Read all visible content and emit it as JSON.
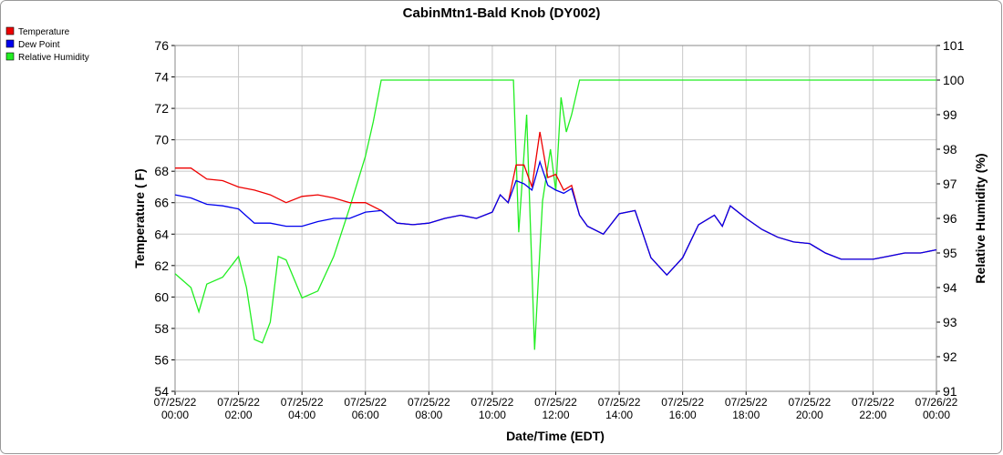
{
  "chart_data": {
    "type": "line",
    "title": "CabinMtn1-Bald Knob (DY002)",
    "x_label": "Date/Time (EDT)",
    "y_label": "Temperature ( F)",
    "y2_label": "Relative Humidity (%)",
    "xlim": [
      "07/25/22 00:00",
      "07/26/22 00:00"
    ],
    "xticks": [
      "07/25/22 00:00",
      "07/25/22 02:00",
      "07/25/22 04:00",
      "07/25/22 06:00",
      "07/25/22 08:00",
      "07/25/22 10:00",
      "07/25/22 12:00",
      "07/25/22 14:00",
      "07/25/22 16:00",
      "07/25/22 18:00",
      "07/25/22 20:00",
      "07/25/22 22:00",
      "07/26/22 00:00"
    ],
    "ylim": [
      54,
      76
    ],
    "yticks": [
      54,
      56,
      58,
      60,
      62,
      64,
      66,
      68,
      70,
      72,
      74,
      76
    ],
    "y2lim": [
      91,
      101
    ],
    "y2ticks": [
      91,
      92,
      93,
      94,
      95,
      96,
      97,
      98,
      99,
      100,
      101
    ],
    "grid": true,
    "legend": "top-left",
    "series": [
      {
        "name": "Temperature",
        "color": "#ee0000",
        "x": [
          "07/25/22 00:00",
          "07/25/22 00:30",
          "07/25/22 01:00",
          "07/25/22 01:30",
          "07/25/22 02:00",
          "07/25/22 02:30",
          "07/25/22 03:00",
          "07/25/22 03:30",
          "07/25/22 04:00",
          "07/25/22 04:30",
          "07/25/22 05:00",
          "07/25/22 05:30",
          "07/25/22 06:00",
          "07/25/22 06:30",
          "07/25/22 07:00",
          "07/25/22 07:30",
          "07/25/22 08:00",
          "07/25/22 08:30",
          "07/25/22 09:00",
          "07/25/22 09:30",
          "07/25/22 10:00",
          "07/25/22 10:15",
          "07/25/22 10:30",
          "07/25/22 10:45",
          "07/25/22 11:00",
          "07/25/22 11:15",
          "07/25/22 11:30",
          "07/25/22 11:45",
          "07/25/22 12:00",
          "07/25/22 12:15",
          "07/25/22 12:30",
          "07/25/22 12:45",
          "07/25/22 13:00",
          "07/25/22 13:30",
          "07/25/22 14:00",
          "07/25/22 14:30",
          "07/25/22 15:00",
          "07/25/22 15:30",
          "07/25/22 16:00",
          "07/25/22 16:30",
          "07/25/22 17:00",
          "07/25/22 17:15",
          "07/25/22 17:30",
          "07/25/22 18:00",
          "07/25/22 18:30",
          "07/25/22 19:00",
          "07/25/22 19:30",
          "07/25/22 20:00",
          "07/25/22 20:30",
          "07/25/22 21:00",
          "07/25/22 21:30",
          "07/25/22 22:00",
          "07/25/22 22:30",
          "07/25/22 23:00",
          "07/25/22 23:30",
          "07/26/22 00:00"
        ],
        "values": [
          68.2,
          68.2,
          67.5,
          67.4,
          67.0,
          66.8,
          66.5,
          66.0,
          66.4,
          66.5,
          66.3,
          66.0,
          66.0,
          65.5,
          64.7,
          64.6,
          64.7,
          65.0,
          65.2,
          65.0,
          65.4,
          66.5,
          66.0,
          68.4,
          68.4,
          67.0,
          70.5,
          67.6,
          67.8,
          66.8,
          67.1,
          65.2,
          64.5,
          64.0,
          65.3,
          65.5,
          62.5,
          61.4,
          62.5,
          64.6,
          65.2,
          64.5,
          65.8,
          65.0,
          64.3,
          63.8,
          63.5,
          63.4,
          62.8,
          62.4,
          62.4,
          62.4,
          62.6,
          62.8,
          62.8,
          63.0
        ]
      },
      {
        "name": "Dew Point",
        "color": "#0000ee",
        "x": [
          "07/25/22 00:00",
          "07/25/22 00:30",
          "07/25/22 01:00",
          "07/25/22 01:30",
          "07/25/22 02:00",
          "07/25/22 02:30",
          "07/25/22 03:00",
          "07/25/22 03:30",
          "07/25/22 04:00",
          "07/25/22 04:30",
          "07/25/22 05:00",
          "07/25/22 05:30",
          "07/25/22 06:00",
          "07/25/22 06:30",
          "07/25/22 07:00",
          "07/25/22 07:30",
          "07/25/22 08:00",
          "07/25/22 08:30",
          "07/25/22 09:00",
          "07/25/22 09:30",
          "07/25/22 10:00",
          "07/25/22 10:15",
          "07/25/22 10:30",
          "07/25/22 10:45",
          "07/25/22 11:00",
          "07/25/22 11:15",
          "07/25/22 11:30",
          "07/25/22 11:45",
          "07/25/22 12:00",
          "07/25/22 12:15",
          "07/25/22 12:30",
          "07/25/22 12:45",
          "07/25/22 13:00",
          "07/25/22 13:30",
          "07/25/22 14:00",
          "07/25/22 14:30",
          "07/25/22 15:00",
          "07/25/22 15:30",
          "07/25/22 16:00",
          "07/25/22 16:30",
          "07/25/22 17:00",
          "07/25/22 17:15",
          "07/25/22 17:30",
          "07/25/22 18:00",
          "07/25/22 18:30",
          "07/25/22 19:00",
          "07/25/22 19:30",
          "07/25/22 20:00",
          "07/25/22 20:30",
          "07/25/22 21:00",
          "07/25/22 21:30",
          "07/25/22 22:00",
          "07/25/22 22:30",
          "07/25/22 23:00",
          "07/25/22 23:30",
          "07/26/22 00:00"
        ],
        "values": [
          66.5,
          66.3,
          65.9,
          65.8,
          65.6,
          64.7,
          64.7,
          64.5,
          64.5,
          64.8,
          65.0,
          65.0,
          65.4,
          65.5,
          64.7,
          64.6,
          64.7,
          65.0,
          65.2,
          65.0,
          65.4,
          66.5,
          66.0,
          67.4,
          67.2,
          66.8,
          68.6,
          67.1,
          66.8,
          66.6,
          66.9,
          65.2,
          64.5,
          64.0,
          65.3,
          65.5,
          62.5,
          61.4,
          62.5,
          64.6,
          65.2,
          64.5,
          65.8,
          65.0,
          64.3,
          63.8,
          63.5,
          63.4,
          62.8,
          62.4,
          62.4,
          62.4,
          62.6,
          62.8,
          62.8,
          63.0
        ]
      },
      {
        "name": "Relative Humidity",
        "color": "#22ee22",
        "axis": "y2",
        "x": [
          "07/25/22 00:00",
          "07/25/22 00:30",
          "07/25/22 00:45",
          "07/25/22 01:00",
          "07/25/22 01:30",
          "07/25/22 02:00",
          "07/25/22 02:15",
          "07/25/22 02:30",
          "07/25/22 02:45",
          "07/25/22 03:00",
          "07/25/22 03:15",
          "07/25/22 03:30",
          "07/25/22 04:00",
          "07/25/22 04:30",
          "07/25/22 05:00",
          "07/25/22 05:30",
          "07/25/22 06:00",
          "07/25/22 06:15",
          "07/25/22 06:30",
          "07/25/22 10:40",
          "07/25/22 10:50",
          "07/25/22 11:05",
          "07/25/22 11:20",
          "07/25/22 11:35",
          "07/25/22 11:50",
          "07/25/22 12:00",
          "07/25/22 12:10",
          "07/25/22 12:20",
          "07/25/22 12:30",
          "07/25/22 12:45",
          "07/26/22 00:00"
        ],
        "values": [
          94.4,
          94.0,
          93.3,
          94.1,
          94.3,
          94.9,
          94.0,
          92.5,
          92.4,
          93.0,
          94.9,
          94.8,
          93.7,
          93.9,
          94.9,
          96.3,
          97.8,
          98.8,
          100,
          100,
          95.6,
          99.0,
          92.2,
          96.5,
          98.0,
          96.8,
          99.5,
          98.5,
          99.0,
          100,
          100
        ]
      }
    ]
  }
}
